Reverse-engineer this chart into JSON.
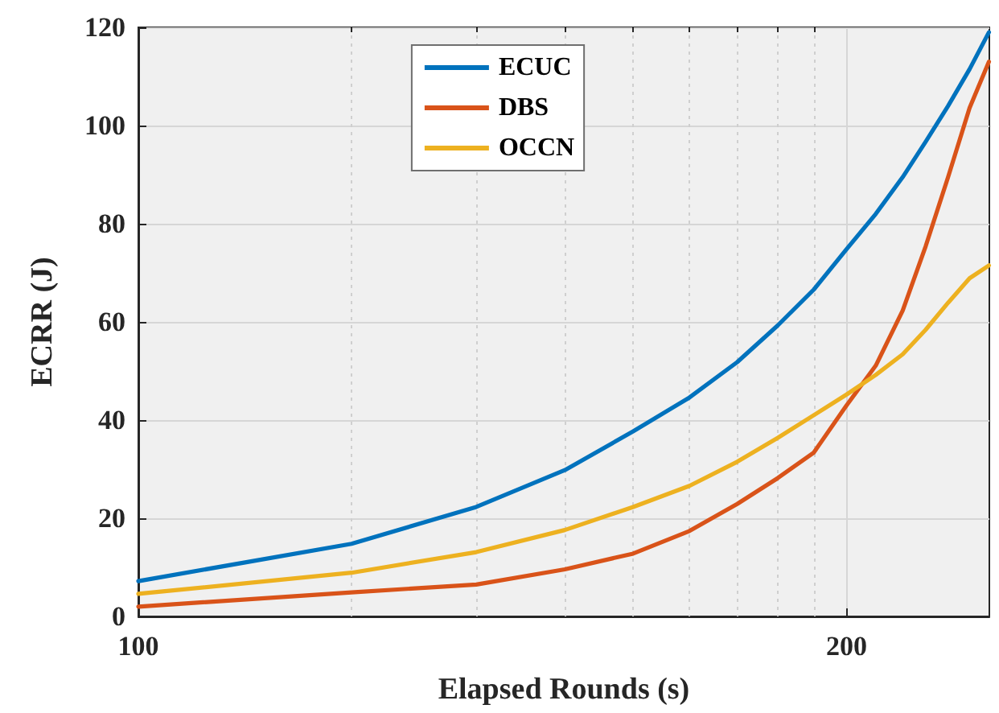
{
  "chart_data": {
    "type": "line",
    "xlabel": "Elapsed Rounds (s)",
    "ylabel": "ECRR (J)",
    "x": [
      100,
      123.2,
      139.2,
      151.8,
      162.3,
      171.5,
      179.7,
      187,
      193.7,
      200,
      205.8,
      211.3,
      216.1,
      220.9,
      225.6,
      229.9
    ],
    "series": [
      {
        "name": "ECUC",
        "color": "#0072bd",
        "values": [
          7.2,
          14.8,
          22.3,
          29.8,
          37.7,
          44.6,
          51.8,
          59.3,
          66.6,
          74.8,
          82,
          89.5,
          96.7,
          104,
          111.5,
          119
        ]
      },
      {
        "name": "DBS",
        "color": "#d95319",
        "values": [
          2.0,
          4.9,
          6.5,
          9.6,
          12.8,
          17.4,
          22.9,
          28.2,
          33.4,
          43.0,
          51.1,
          62.3,
          75.4,
          89.5,
          103.6,
          113
        ]
      },
      {
        "name": "OCCN",
        "color": "#edb120",
        "values": [
          4.6,
          8.9,
          13.1,
          17.6,
          22.3,
          26.6,
          31.5,
          36.4,
          41.0,
          45.2,
          49.2,
          53.4,
          58.4,
          63.9,
          68.9,
          71.5
        ]
      }
    ],
    "log": "x",
    "xlim": [
      100,
      230
    ],
    "xticks": [
      100,
      {
        "value": 123.2,
        "label": null
      },
      {
        "value": 139.2,
        "label": null
      },
      {
        "value": 151.8,
        "label": null
      },
      {
        "value": 162.3,
        "label": null
      },
      {
        "value": 171.5,
        "label": null
      },
      {
        "value": 179.7,
        "label": null
      },
      {
        "value": 187,
        "label": null
      },
      {
        "value": 193.7,
        "label": null
      },
      200
    ],
    "ylim": [
      0,
      120
    ],
    "yticks": [
      0,
      20,
      40,
      60,
      80,
      100,
      120
    ],
    "grid": true,
    "legend": "top",
    "marker": "none",
    "line_style": "solid"
  }
}
